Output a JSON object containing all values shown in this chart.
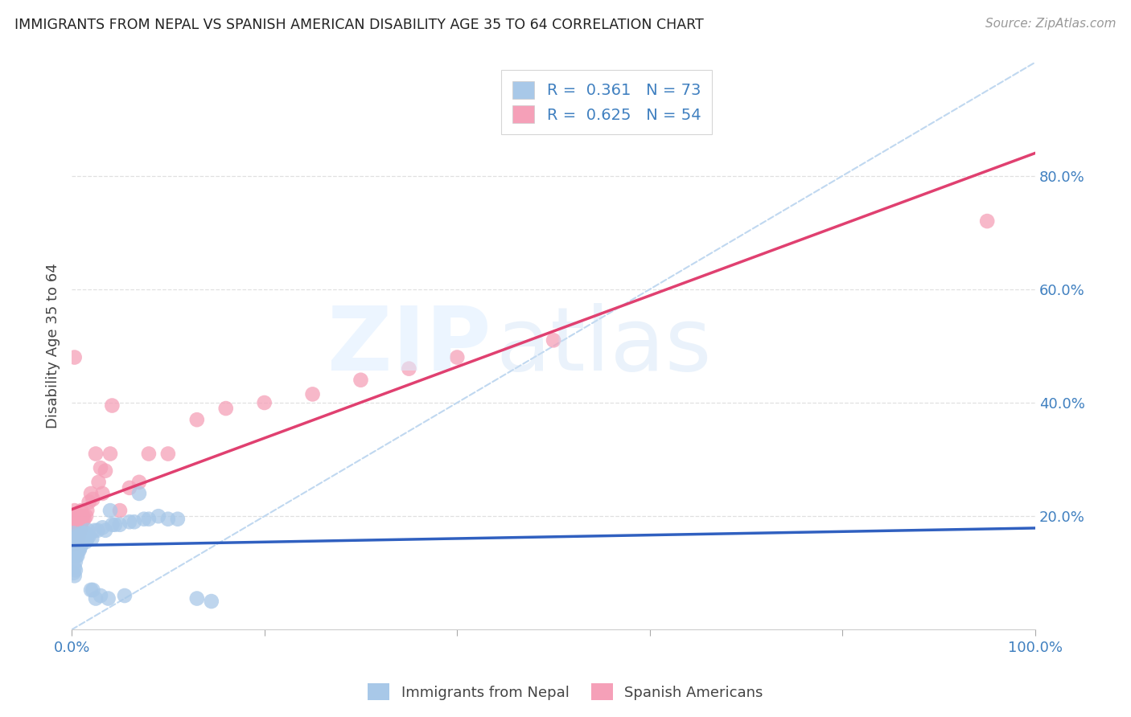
{
  "title": "IMMIGRANTS FROM NEPAL VS SPANISH AMERICAN DISABILITY AGE 35 TO 64 CORRELATION CHART",
  "source": "Source: ZipAtlas.com",
  "ylabel": "Disability Age 35 to 64",
  "nepal_R": 0.361,
  "nepal_N": 73,
  "spanish_R": 0.625,
  "spanish_N": 54,
  "nepal_color": "#a8c8e8",
  "spanish_color": "#f5a0b8",
  "nepal_line_color": "#3060c0",
  "spanish_line_color": "#e04070",
  "diagonal_color": "#c0d8f0",
  "background_color": "#ffffff",
  "grid_color": "#e0e0e0",
  "tick_color": "#4080c0",
  "nepal_x": [
    0.001,
    0.001,
    0.001,
    0.002,
    0.002,
    0.002,
    0.002,
    0.002,
    0.003,
    0.003,
    0.003,
    0.003,
    0.003,
    0.003,
    0.004,
    0.004,
    0.004,
    0.004,
    0.004,
    0.005,
    0.005,
    0.005,
    0.005,
    0.006,
    0.006,
    0.006,
    0.007,
    0.007,
    0.007,
    0.008,
    0.008,
    0.008,
    0.009,
    0.009,
    0.01,
    0.01,
    0.01,
    0.011,
    0.011,
    0.012,
    0.012,
    0.013,
    0.014,
    0.015,
    0.015,
    0.016,
    0.017,
    0.018,
    0.02,
    0.021,
    0.022,
    0.024,
    0.025,
    0.027,
    0.03,
    0.032,
    0.035,
    0.038,
    0.04,
    0.042,
    0.045,
    0.05,
    0.055,
    0.06,
    0.065,
    0.07,
    0.075,
    0.08,
    0.09,
    0.1,
    0.11,
    0.13,
    0.145
  ],
  "nepal_y": [
    0.145,
    0.155,
    0.16,
    0.1,
    0.13,
    0.15,
    0.155,
    0.17,
    0.095,
    0.11,
    0.145,
    0.15,
    0.155,
    0.16,
    0.105,
    0.12,
    0.15,
    0.155,
    0.165,
    0.13,
    0.145,
    0.15,
    0.16,
    0.13,
    0.15,
    0.155,
    0.14,
    0.15,
    0.16,
    0.14,
    0.155,
    0.165,
    0.145,
    0.155,
    0.15,
    0.16,
    0.17,
    0.155,
    0.165,
    0.155,
    0.17,
    0.16,
    0.165,
    0.155,
    0.17,
    0.16,
    0.175,
    0.165,
    0.07,
    0.16,
    0.07,
    0.175,
    0.055,
    0.175,
    0.06,
    0.18,
    0.175,
    0.055,
    0.21,
    0.185,
    0.185,
    0.185,
    0.06,
    0.19,
    0.19,
    0.24,
    0.195,
    0.195,
    0.2,
    0.195,
    0.195,
    0.055,
    0.05
  ],
  "spanish_x": [
    0.001,
    0.001,
    0.001,
    0.002,
    0.002,
    0.002,
    0.002,
    0.003,
    0.003,
    0.003,
    0.004,
    0.004,
    0.005,
    0.005,
    0.005,
    0.006,
    0.006,
    0.007,
    0.007,
    0.008,
    0.008,
    0.009,
    0.01,
    0.01,
    0.011,
    0.012,
    0.013,
    0.015,
    0.016,
    0.018,
    0.02,
    0.022,
    0.025,
    0.028,
    0.03,
    0.032,
    0.035,
    0.04,
    0.042,
    0.05,
    0.06,
    0.07,
    0.08,
    0.1,
    0.13,
    0.16,
    0.2,
    0.25,
    0.3,
    0.35,
    0.4,
    0.5,
    0.95,
    0.003
  ],
  "spanish_y": [
    0.16,
    0.175,
    0.2,
    0.15,
    0.155,
    0.18,
    0.2,
    0.155,
    0.17,
    0.21,
    0.155,
    0.165,
    0.155,
    0.17,
    0.2,
    0.16,
    0.18,
    0.16,
    0.19,
    0.17,
    0.2,
    0.185,
    0.18,
    0.21,
    0.19,
    0.2,
    0.195,
    0.2,
    0.21,
    0.225,
    0.24,
    0.23,
    0.31,
    0.26,
    0.285,
    0.24,
    0.28,
    0.31,
    0.395,
    0.21,
    0.25,
    0.26,
    0.31,
    0.31,
    0.37,
    0.39,
    0.4,
    0.415,
    0.44,
    0.46,
    0.48,
    0.51,
    0.72,
    0.48
  ],
  "xtick_positions": [
    0.0,
    0.2,
    0.4,
    0.6,
    0.8,
    1.0
  ],
  "xtick_labels": [
    "0.0%",
    "",
    "",
    "",
    "",
    "100.0%"
  ],
  "ytick_positions": [
    0.2,
    0.4,
    0.6,
    0.8
  ],
  "ytick_labels": [
    "20.0%",
    "40.0%",
    "60.0%",
    "80.0%"
  ]
}
